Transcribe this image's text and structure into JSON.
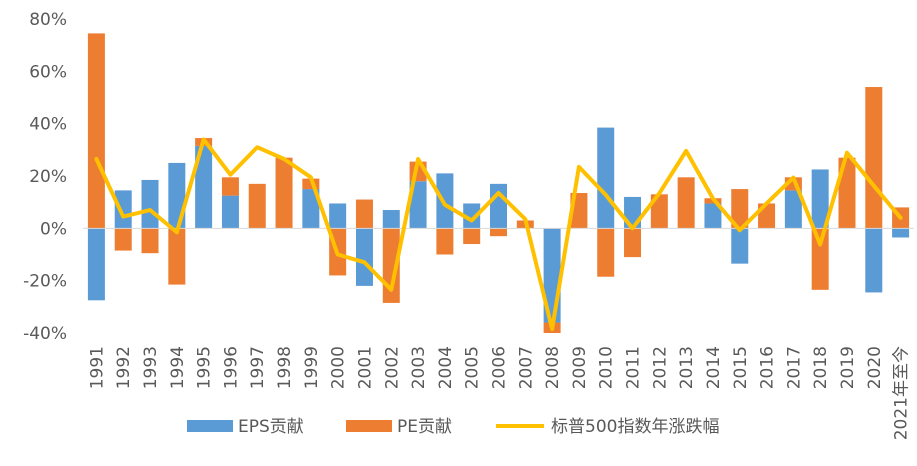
{
  "chart_data": {
    "type": "bar",
    "stacked": true,
    "categories": [
      "1991",
      "1992",
      "1993",
      "1994",
      "1995",
      "1996",
      "1997",
      "1998",
      "1999",
      "2000",
      "2001",
      "2002",
      "2003",
      "2004",
      "2005",
      "2006",
      "2007",
      "2008",
      "2009",
      "2010",
      "2011",
      "2012",
      "2013",
      "2014",
      "2015",
      "2016",
      "2017",
      "2018",
      "2019",
      "2020",
      "2021年至今"
    ],
    "series": [
      {
        "name": "EPS贡献",
        "kind": "bar",
        "color": "#5B9BD5",
        "values": [
          -27.5,
          14.5,
          18.5,
          25,
          31.5,
          12.5,
          0,
          0,
          15,
          9.5,
          -22,
          7,
          18,
          21,
          9.5,
          17,
          0,
          -36,
          0,
          38.5,
          12,
          0,
          0,
          9.5,
          -13.5,
          0,
          14.5,
          22.5,
          0,
          -24.5,
          -3.5
        ]
      },
      {
        "name": "PE贡献",
        "kind": "bar",
        "color": "#ED7D31",
        "values": [
          74.5,
          -8.5,
          -9.5,
          -21.5,
          3,
          7,
          17,
          27,
          4,
          -18,
          11,
          -28.5,
          7.5,
          -10,
          -6,
          -3,
          3,
          -4,
          13.5,
          -18.5,
          -11,
          13,
          19.5,
          2,
          15,
          9.5,
          5,
          -23.5,
          27,
          54,
          8
        ]
      },
      {
        "name": "标普500指数年涨跌幅",
        "kind": "line",
        "color": "#FFC000",
        "values": [
          26.5,
          4.5,
          7,
          -1.5,
          34,
          20.5,
          31,
          26.5,
          19.5,
          -10,
          -13,
          -23.5,
          26.5,
          9,
          3,
          13.5,
          3.5,
          -38.5,
          23.5,
          12.8,
          0,
          13.4,
          29.6,
          11.4,
          -0.7,
          9.5,
          19.4,
          -6.2,
          28.9,
          16.3,
          4
        ]
      }
    ],
    "y_ticks": [
      "80%",
      "60%",
      "40%",
      "20%",
      "0%",
      "-20%",
      "-40%"
    ],
    "ylim": [
      -40,
      80
    ],
    "xlabel": "",
    "ylabel": "",
    "title": "",
    "grid": false,
    "legend_position": "bottom"
  }
}
